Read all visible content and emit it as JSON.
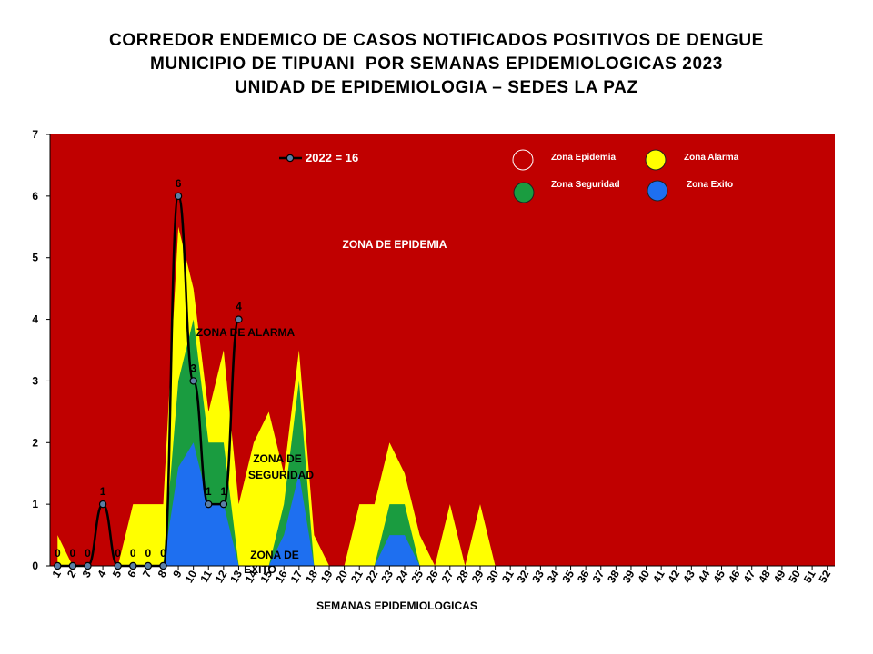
{
  "title_lines": [
    "CORREDOR ENDEMICO DE CASOS NOTIFICADOS POSITIVOS DE DENGUE",
    "MUNICIPIO DE TIPUANI  POR SEMANAS EPIDEMIOLOGICAS 2023",
    "UNIDAD DE EPIDEMIOLOGIA – SEDES LA PAZ"
  ],
  "colors": {
    "epidemia": "#c00000",
    "alarma": "#ffff00",
    "seguridad": "#1a9c40",
    "exito": "#1e6ff0",
    "line": "#000000"
  },
  "chart_data": {
    "type": "area",
    "title": "CORREDOR ENDEMICO DE CASOS NOTIFICADOS POSITIVOS DE DENGUE MUNICIPIO DE TIPUANI  POR SEMANAS EPIDEMIOLOGICAS 2023 UNIDAD DE EPIDEMIOLOGIA – SEDES LA PAZ",
    "xlabel": "SEMANAS EPIDEMIOLOGICAS",
    "ylabel": "",
    "ylim": [
      0,
      7
    ],
    "yticks": [
      0,
      1,
      2,
      3,
      4,
      5,
      6,
      7
    ],
    "x": [
      1,
      2,
      3,
      4,
      5,
      6,
      7,
      8,
      9,
      10,
      11,
      12,
      13,
      14,
      15,
      16,
      17,
      18,
      19,
      20,
      21,
      22,
      23,
      24,
      25,
      26,
      27,
      28,
      29,
      30,
      31,
      32,
      33,
      34,
      35,
      36,
      37,
      38,
      39,
      40,
      41,
      42,
      43,
      44,
      45,
      46,
      47,
      48,
      49,
      50,
      51,
      52
    ],
    "zones": {
      "exito": [
        0,
        0,
        0,
        0,
        0,
        0,
        0,
        0,
        1.6,
        2,
        1,
        1,
        0,
        0,
        0,
        0.5,
        1.5,
        0,
        0,
        0,
        0,
        0,
        0.5,
        0.5,
        0,
        0,
        0,
        0,
        0,
        0,
        0,
        0,
        0,
        0,
        0,
        0,
        0,
        0,
        0,
        0,
        0,
        0,
        0,
        0,
        0,
        0,
        0,
        0,
        0,
        0,
        0,
        0
      ],
      "seguridad": [
        0,
        0,
        0,
        0,
        0,
        0,
        0,
        0,
        3,
        4,
        2,
        2,
        0,
        0,
        0,
        1,
        3,
        0,
        0,
        0,
        0,
        0,
        1,
        1,
        0,
        0,
        0,
        0,
        0,
        0,
        0,
        0,
        0,
        0,
        0,
        0,
        0,
        0,
        0,
        0,
        0,
        0,
        0,
        0,
        0,
        0,
        0,
        0,
        0,
        0,
        0,
        0
      ],
      "alarma": [
        0.5,
        0,
        0,
        0,
        0,
        1,
        1,
        1,
        5.5,
        4.5,
        2.5,
        3.5,
        1,
        2,
        2.5,
        1.5,
        3.5,
        0.5,
        0,
        0,
        1,
        1,
        2,
        1.5,
        0.5,
        0,
        1,
        0,
        1,
        0,
        0,
        0,
        0,
        0,
        0,
        0,
        0,
        0,
        0,
        0,
        0,
        0,
        0,
        0,
        0,
        0,
        0,
        0,
        0,
        0,
        0,
        0
      ]
    },
    "series": [
      {
        "name": "2022 = 16",
        "x": [
          1,
          2,
          3,
          4,
          5,
          6,
          7,
          8,
          9,
          10,
          11,
          12,
          13
        ],
        "values": [
          0,
          0,
          0,
          1,
          0,
          0,
          0,
          0,
          6,
          3,
          1,
          1,
          4
        ]
      }
    ],
    "data_labels": [
      "0",
      "0",
      "0",
      "1",
      "0",
      "0",
      "0",
      "0",
      "6",
      "3",
      "1",
      "1",
      "4"
    ],
    "zone_labels": {
      "epidemia": "ZONA DE EPIDEMIA",
      "alarma": "ZONA DE ALARMA",
      "seguridad": [
        "ZONA DE",
        "SEGURIDAD"
      ],
      "exito": [
        "ZONA DE",
        "EXITO"
      ]
    },
    "legend": [
      {
        "label": "Zona Epidemia",
        "key": "epidemia"
      },
      {
        "label": "Zona Alarma",
        "key": "alarma"
      },
      {
        "label": "Zona Seguridad",
        "key": "seguridad"
      },
      {
        "label": "Zona Exito",
        "key": "exito"
      }
    ],
    "legend_placement": "top-right",
    "grid": false
  }
}
